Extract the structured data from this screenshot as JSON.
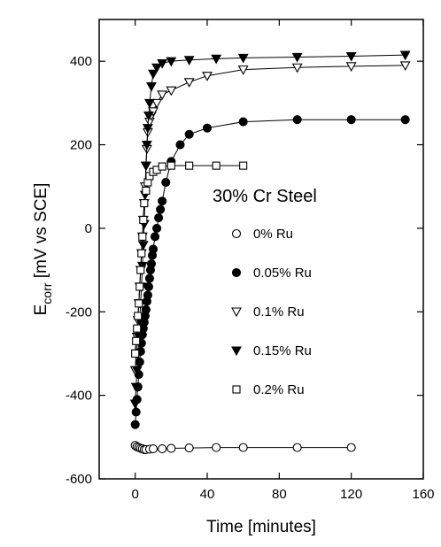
{
  "chart_data": {
    "type": "line",
    "title": "",
    "xlabel": "Time [minutes]",
    "ylabel_main": "E",
    "ylabel_sub": "corr",
    "ylabel_rest": " [mV vs SCE]",
    "xlim": [
      -20,
      160
    ],
    "ylim": [
      -600,
      500
    ],
    "xticks": [
      0,
      40,
      80,
      120,
      160
    ],
    "yticks": [
      -600,
      -400,
      -200,
      0,
      200,
      400
    ],
    "grid": false,
    "legend_title": "30% Cr Steel",
    "legend_placement": "center-right",
    "series": [
      {
        "name": "0% Ru",
        "marker": "circle-open",
        "x": [
          0,
          1,
          2,
          3,
          4,
          5,
          6,
          8,
          10,
          15,
          20,
          30,
          45,
          60,
          90,
          120
        ],
        "y": [
          -520,
          -523,
          -525,
          -527,
          -528,
          -530,
          -530,
          -529,
          -528,
          -528,
          -527,
          -526,
          -525,
          -525,
          -525,
          -525
        ]
      },
      {
        "name": "0.05% Ru",
        "marker": "circle-filled",
        "x": [
          0,
          0.5,
          1,
          1.5,
          2,
          2.5,
          3,
          3.5,
          4,
          4.5,
          5,
          5.5,
          6,
          6.5,
          7,
          7.5,
          8,
          8.5,
          9,
          9.5,
          10,
          11,
          12,
          13,
          14,
          15,
          17,
          20,
          25,
          30,
          40,
          60,
          90,
          120,
          150
        ],
        "y": [
          -470,
          -440,
          -410,
          -380,
          -350,
          -320,
          -295,
          -275,
          -255,
          -240,
          -225,
          -210,
          -195,
          -175,
          -160,
          -140,
          -120,
          -100,
          -85,
          -65,
          -50,
          -20,
          0,
          25,
          45,
          65,
          110,
          160,
          200,
          225,
          240,
          255,
          260,
          260,
          260
        ]
      },
      {
        "name": "0.1% Ru",
        "marker": "triangle-down-open",
        "x": [
          0,
          0.5,
          1,
          1.5,
          2,
          2.5,
          3,
          3.5,
          4,
          4.5,
          5,
          5.5,
          6,
          6.5,
          7,
          8,
          9,
          10,
          12,
          15,
          20,
          30,
          40,
          60,
          90,
          120,
          150
        ],
        "y": [
          -340,
          -300,
          -260,
          -220,
          -180,
          -140,
          -100,
          -60,
          -20,
          20,
          60,
          100,
          150,
          190,
          230,
          255,
          270,
          280,
          300,
          320,
          330,
          350,
          365,
          380,
          385,
          388,
          390
        ]
      },
      {
        "name": "0.15% Ru",
        "marker": "triangle-down-filled",
        "x": [
          0,
          0.5,
          1,
          1.5,
          2,
          2.5,
          3,
          3.5,
          4,
          4.5,
          5,
          5.5,
          6,
          6.5,
          7,
          7.5,
          8,
          9,
          10,
          12,
          15,
          20,
          30,
          45,
          60,
          90,
          120,
          150
        ],
        "y": [
          -420,
          -380,
          -340,
          -300,
          -260,
          -220,
          -180,
          -140,
          -90,
          -40,
          10,
          80,
          150,
          200,
          240,
          270,
          300,
          340,
          370,
          385,
          395,
          400,
          403,
          406,
          408,
          410,
          412,
          415
        ]
      },
      {
        "name": "0.2% Ru",
        "marker": "square-open",
        "x": [
          0,
          0.5,
          1,
          1.5,
          2,
          2.5,
          3,
          3.5,
          4,
          4.5,
          5,
          6,
          7,
          8,
          10,
          12,
          15,
          20,
          30,
          45,
          60
        ],
        "y": [
          -300,
          -270,
          -240,
          -210,
          -180,
          -140,
          -100,
          -60,
          -20,
          20,
          60,
          90,
          110,
          125,
          135,
          140,
          148,
          150,
          150,
          150,
          150
        ]
      }
    ]
  }
}
